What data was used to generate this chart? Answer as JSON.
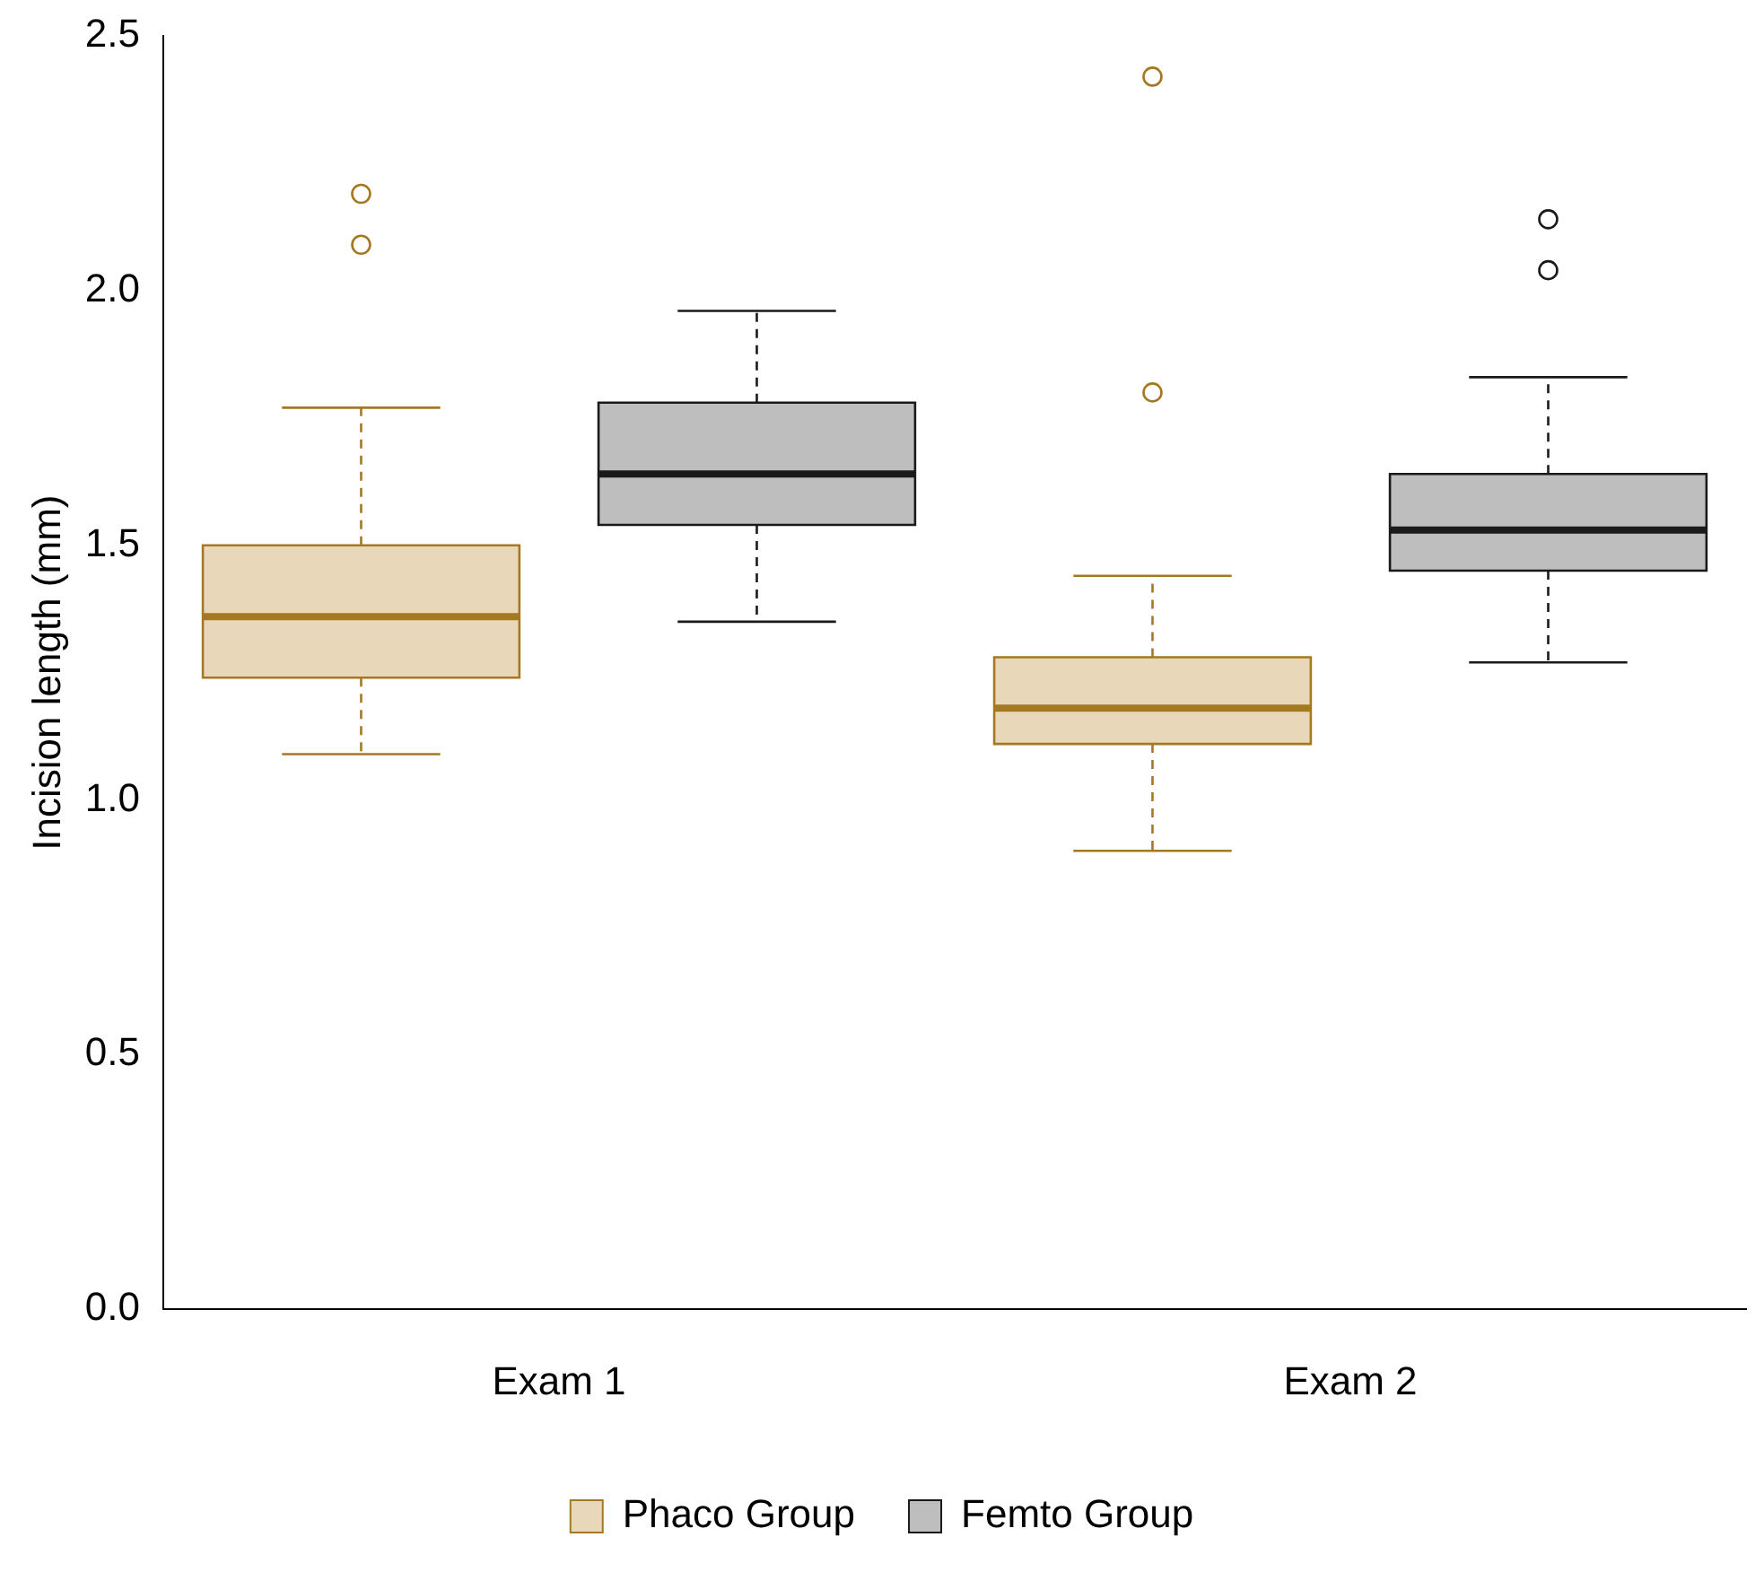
{
  "chart_data": {
    "type": "box",
    "ylabel": "Incision length (mm)",
    "categories": [
      "Exam 1",
      "Exam 2"
    ],
    "ylim": [
      0,
      2.5
    ],
    "yticks": [
      {
        "value": 0,
        "label": "0.0"
      },
      0.5,
      {
        "value": 1,
        "label": "1.0"
      },
      1.5,
      {
        "value": 2,
        "label": "2.0"
      },
      2.5
    ],
    "grid": false,
    "legend": "bottom",
    "series": [
      {
        "name": "Phaco Group",
        "color": "#e8d8b9",
        "boxes": [
          {
            "low": 1.09,
            "q1": 1.24,
            "median": 1.36,
            "q3": 1.5,
            "high": 1.77,
            "outliers": [
              2.09,
              2.19
            ]
          },
          {
            "low": 0.9,
            "q1": 1.11,
            "median": 1.18,
            "q3": 1.28,
            "high": 1.44,
            "outliers": [
              1.8,
              2.42
            ]
          }
        ]
      },
      {
        "name": "Femto Group",
        "color": "#bebebe",
        "boxes": [
          {
            "low": 1.35,
            "q1": 1.54,
            "median": 1.64,
            "q3": 1.78,
            "high": 1.96
          },
          {
            "low": 1.27,
            "q1": 1.45,
            "median": 1.53,
            "q3": 1.64,
            "high": 1.83,
            "outliers": [
              2.04,
              2.14
            ]
          }
        ]
      }
    ]
  }
}
